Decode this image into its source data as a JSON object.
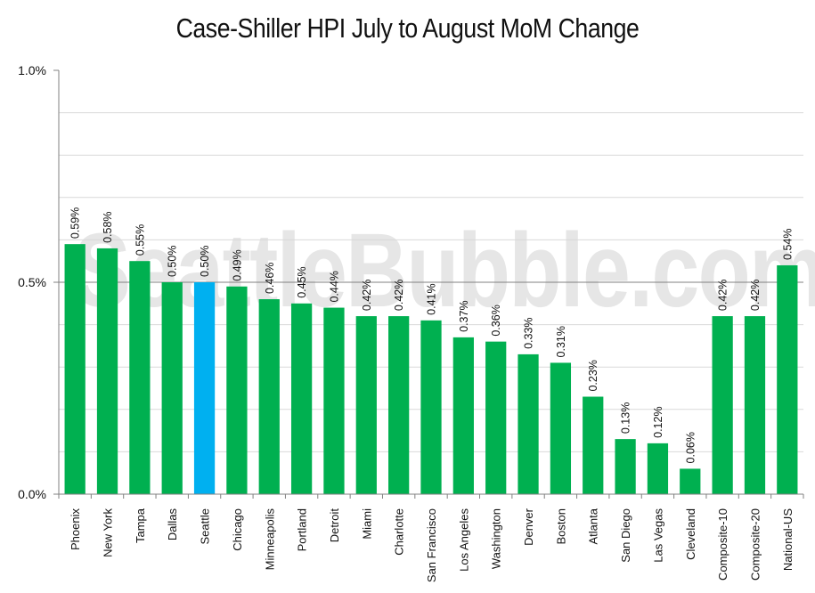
{
  "watermark": "SeattleBubble.com",
  "colors": {
    "default_bar": "#00b050",
    "highlight_bar": "#00b0f0",
    "grid_major": "#808080",
    "grid_minor": "#d9d9d9"
  },
  "chart_data": {
    "type": "bar",
    "title": "Case-Shiller HPI July to August MoM Change",
    "xlabel": "",
    "ylabel": "",
    "ylim": [
      0,
      1.0
    ],
    "yticks": [
      0.0,
      0.5,
      1.0
    ],
    "ytick_labels": [
      "0.0%",
      "0.5%",
      "1.0%"
    ],
    "highlight": "Seattle",
    "categories": [
      "Phoenix",
      "New York",
      "Tampa",
      "Dallas",
      "Seattle",
      "Chicago",
      "Minneapolis",
      "Portland",
      "Detroit",
      "Miami",
      "Charlotte",
      "San Francisco",
      "Los Angeles",
      "Washington",
      "Denver",
      "Boston",
      "Atlanta",
      "San Diego",
      "Las Vegas",
      "Cleveland",
      "Composite-10",
      "Composite-20",
      "National-US"
    ],
    "values": [
      0.59,
      0.58,
      0.55,
      0.5,
      0.5,
      0.49,
      0.46,
      0.45,
      0.44,
      0.42,
      0.42,
      0.41,
      0.37,
      0.36,
      0.33,
      0.31,
      0.23,
      0.13,
      0.12,
      0.06,
      0.42,
      0.42,
      0.54
    ],
    "value_labels": [
      "0.59%",
      "0.58%",
      "0.55%",
      "0.50%",
      "0.50%",
      "0.49%",
      "0.46%",
      "0.45%",
      "0.44%",
      "0.42%",
      "0.42%",
      "0.41%",
      "0.37%",
      "0.36%",
      "0.33%",
      "0.31%",
      "0.23%",
      "0.13%",
      "0.12%",
      "0.06%",
      "0.42%",
      "0.42%",
      "0.54%"
    ],
    "grid": true,
    "legend": "none"
  }
}
